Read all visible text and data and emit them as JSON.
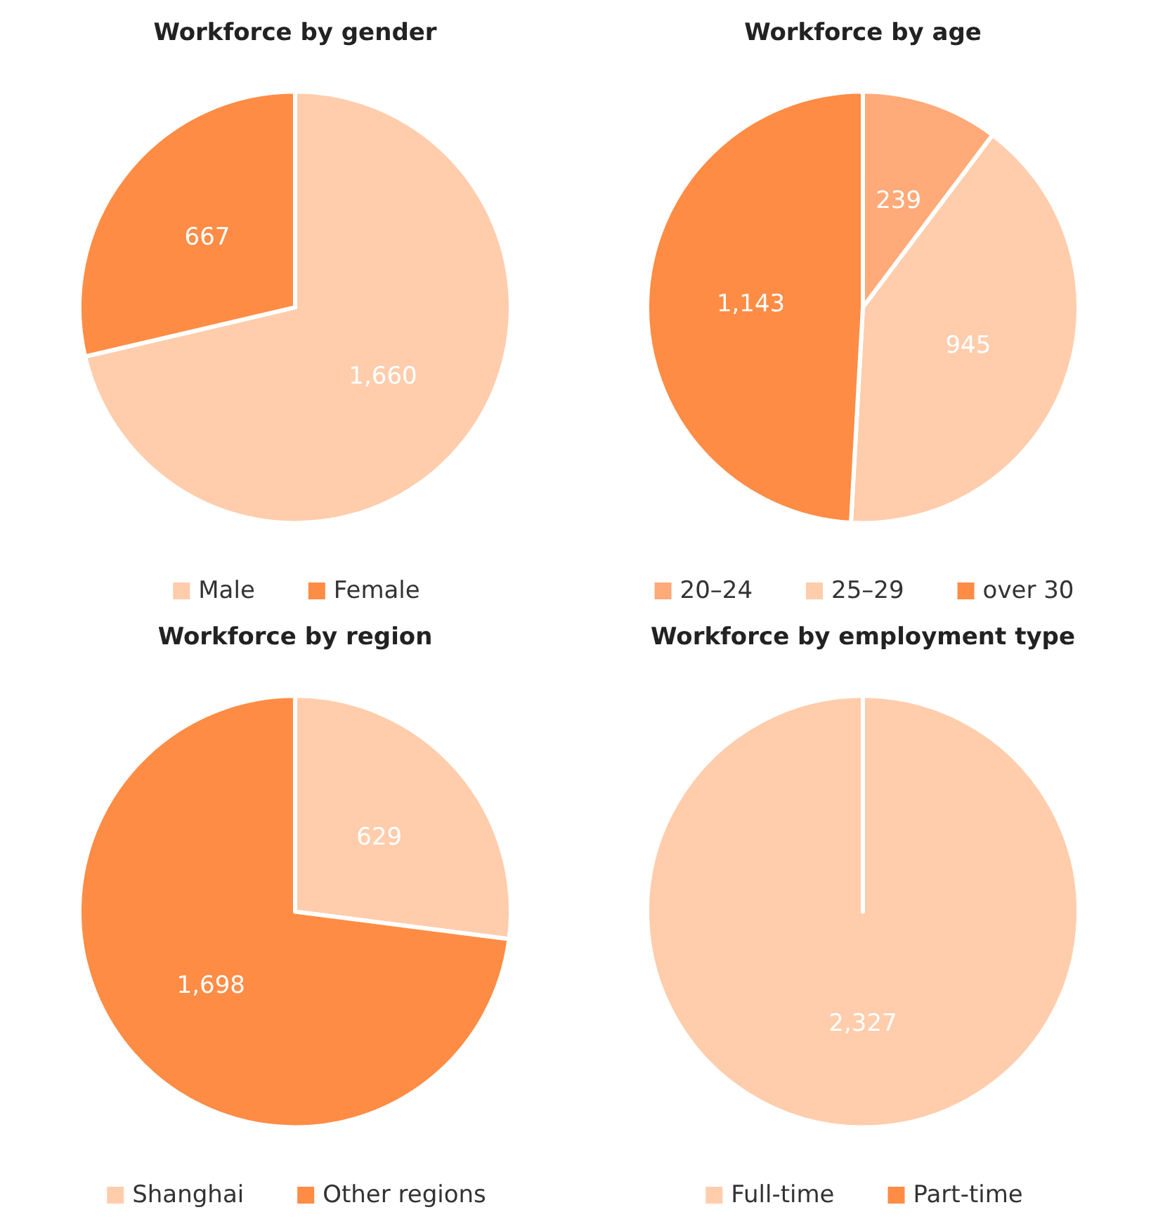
{
  "chart_data": [
    {
      "type": "pie",
      "title": "Workforce by gender",
      "categories": [
        "Male",
        "Female"
      ],
      "values": [
        1660,
        667
      ],
      "colors": [
        "#ffcdac",
        "#ff8c45"
      ],
      "value_labels": [
        "1,660",
        "667"
      ],
      "legend": "bottom"
    },
    {
      "type": "pie",
      "title": "Workforce by age",
      "categories": [
        "20–24",
        "25–29",
        "over 30"
      ],
      "values": [
        239,
        945,
        1143
      ],
      "colors": [
        "#ffaa78",
        "#ffcdac",
        "#ff8c45"
      ],
      "value_labels": [
        "239",
        "945",
        "1,143"
      ],
      "legend": "bottom"
    },
    {
      "type": "pie",
      "title": "Workforce by region",
      "categories": [
        "Shanghai",
        "Other regions"
      ],
      "values": [
        629,
        1698
      ],
      "colors": [
        "#ffcdac",
        "#ff8c45"
      ],
      "value_labels": [
        "629",
        "1,698"
      ],
      "legend": "bottom"
    },
    {
      "type": "pie",
      "title": "Workforce by employment type",
      "categories": [
        "Full-time",
        "Part-time"
      ],
      "values": [
        2327,
        0
      ],
      "colors": [
        "#ffcdac",
        "#ff8c45"
      ],
      "value_labels": [
        "2,327",
        null
      ],
      "legend": "bottom"
    }
  ]
}
